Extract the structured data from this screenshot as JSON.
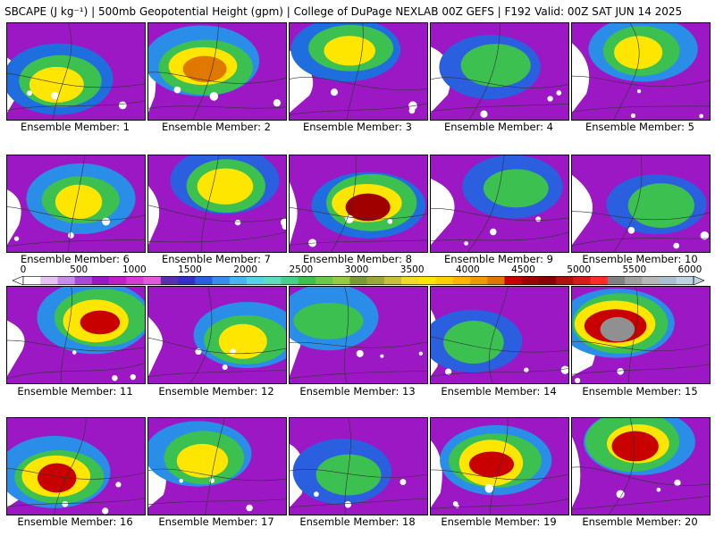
{
  "title": "SBCAPE (J kg⁻¹) | 500mb Geopotential Height (gpm) | College of DuPage NEXLAB 00Z GEFS | F192 Valid: 00Z SAT JUN 14 2025",
  "member_prefix": "Ensemble Member:",
  "members": [
    "1",
    "2",
    "3",
    "4",
    "5",
    "6",
    "7",
    "8",
    "9",
    "10",
    "11",
    "12",
    "13",
    "14",
    "15",
    "16",
    "17",
    "18",
    "19",
    "20"
  ],
  "colorbar": {
    "labels": [
      "0",
      "500",
      "1000",
      "1500",
      "2000",
      "2500",
      "3000",
      "3500",
      "4000",
      "4500",
      "5000",
      "5500",
      "6000"
    ],
    "colors": [
      "#ffffff",
      "#e6c3f3",
      "#c98be8",
      "#a64bd8",
      "#9b18c4",
      "#c21ec7",
      "#d63ad4",
      "#e35ad9",
      "#5a2fb0",
      "#3230c8",
      "#2a5fe0",
      "#3c8cf0",
      "#46b4f0",
      "#55d2e8",
      "#5fdcc0",
      "#46d08a",
      "#3cc050",
      "#6ac84a",
      "#96cc44",
      "#7a9a3a",
      "#9aa83a",
      "#c8c03a",
      "#f0dc28",
      "#ffe600",
      "#ffd000",
      "#ffb400",
      "#f09a00",
      "#e07800",
      "#c80000",
      "#a00000",
      "#8a0000",
      "#b01010",
      "#d81a1a",
      "#ff2a2a",
      "#808080",
      "#a0a0a0",
      "#b8b8b8",
      "#a8c0d0",
      "#c0d4e0"
    ]
  },
  "panels": [
    {
      "zones": [
        "#9b18c4",
        "#1e6ee0",
        "#3cc050",
        "#ffe600"
      ]
    },
    {
      "zones": [
        "#9b18c4",
        "#2a8ee8",
        "#3cc050",
        "#ffe600",
        "#e07800"
      ]
    },
    {
      "zones": [
        "#9b18c4",
        "#1e6ee0",
        "#3cc050",
        "#ffe600"
      ]
    },
    {
      "zones": [
        "#9b18c4",
        "#2a5fe0",
        "#3cc050"
      ]
    },
    {
      "zones": [
        "#9b18c4",
        "#2a8ee8",
        "#3cc050",
        "#ffe600"
      ]
    },
    {
      "zones": [
        "#9b18c4",
        "#2a8ee8",
        "#3cc050",
        "#ffe600"
      ]
    },
    {
      "zones": [
        "#9b18c4",
        "#2a5fe0",
        "#3cc050",
        "#ffe600"
      ]
    },
    {
      "zones": [
        "#9b18c4",
        "#1e6ee0",
        "#3cc050",
        "#ffe600",
        "#a00000"
      ]
    },
    {
      "zones": [
        "#9b18c4",
        "#2a5fe0",
        "#3cc050"
      ]
    },
    {
      "zones": [
        "#9b18c4",
        "#2a5fe0",
        "#3cc050"
      ]
    },
    {
      "zones": [
        "#9b18c4",
        "#2a8ee8",
        "#3cc050",
        "#ffe600",
        "#c80000"
      ]
    },
    {
      "zones": [
        "#9b18c4",
        "#2a8ee8",
        "#3cc050",
        "#ffe600"
      ]
    },
    {
      "zones": [
        "#9b18c4",
        "#2a8ee8",
        "#3cc050"
      ]
    },
    {
      "zones": [
        "#9b18c4",
        "#2a5fe0",
        "#3cc050"
      ]
    },
    {
      "zones": [
        "#9b18c4",
        "#2a8ee8",
        "#3cc050",
        "#ffe600",
        "#c80000",
        "#909090"
      ]
    },
    {
      "zones": [
        "#9b18c4",
        "#2a8ee8",
        "#3cc050",
        "#ffe600",
        "#c80000"
      ]
    },
    {
      "zones": [
        "#9b18c4",
        "#2a8ee8",
        "#3cc050",
        "#ffe600"
      ]
    },
    {
      "zones": [
        "#9b18c4",
        "#2a5fe0",
        "#3cc050"
      ]
    },
    {
      "zones": [
        "#9b18c4",
        "#2a8ee8",
        "#3cc050",
        "#ffe600",
        "#c80000"
      ]
    },
    {
      "zones": [
        "#9b18c4",
        "#2a8ee8",
        "#3cc050",
        "#ffe600",
        "#c80000"
      ]
    }
  ]
}
